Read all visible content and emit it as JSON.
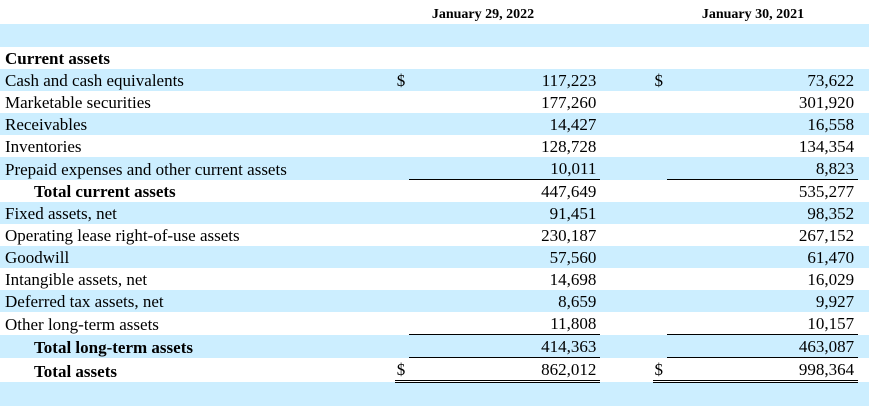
{
  "columns": [
    "January 29, 2022",
    "January 30, 2021"
  ],
  "currency_symbol": "$",
  "section": "Current assets",
  "rows": [
    {
      "label": "Cash and cash equivalents",
      "v1": "117,223",
      "v2": "73,622"
    },
    {
      "label": "Marketable securities",
      "v1": "177,260",
      "v2": "301,920"
    },
    {
      "label": "Receivables",
      "v1": "14,427",
      "v2": "16,558"
    },
    {
      "label": "Inventories",
      "v1": "128,728",
      "v2": "134,354"
    },
    {
      "label": "Prepaid expenses and other current assets",
      "v1": "10,011",
      "v2": "8,823"
    },
    {
      "label": "Total current assets",
      "v1": "447,649",
      "v2": "535,277"
    },
    {
      "label": "Fixed assets, net",
      "v1": "91,451",
      "v2": "98,352"
    },
    {
      "label": "Operating lease right-of-use assets",
      "v1": "230,187",
      "v2": "267,152"
    },
    {
      "label": "Goodwill",
      "v1": "57,560",
      "v2": "61,470"
    },
    {
      "label": "Intangible assets, net",
      "v1": "14,698",
      "v2": "16,029"
    },
    {
      "label": "Deferred tax assets, net",
      "v1": "8,659",
      "v2": "9,927"
    },
    {
      "label": "Other long-term assets",
      "v1": "11,808",
      "v2": "10,157"
    },
    {
      "label": "Total long-term assets",
      "v1": "414,363",
      "v2": "463,087"
    },
    {
      "label": "Total assets",
      "v1": "862,012",
      "v2": "998,364"
    }
  ]
}
